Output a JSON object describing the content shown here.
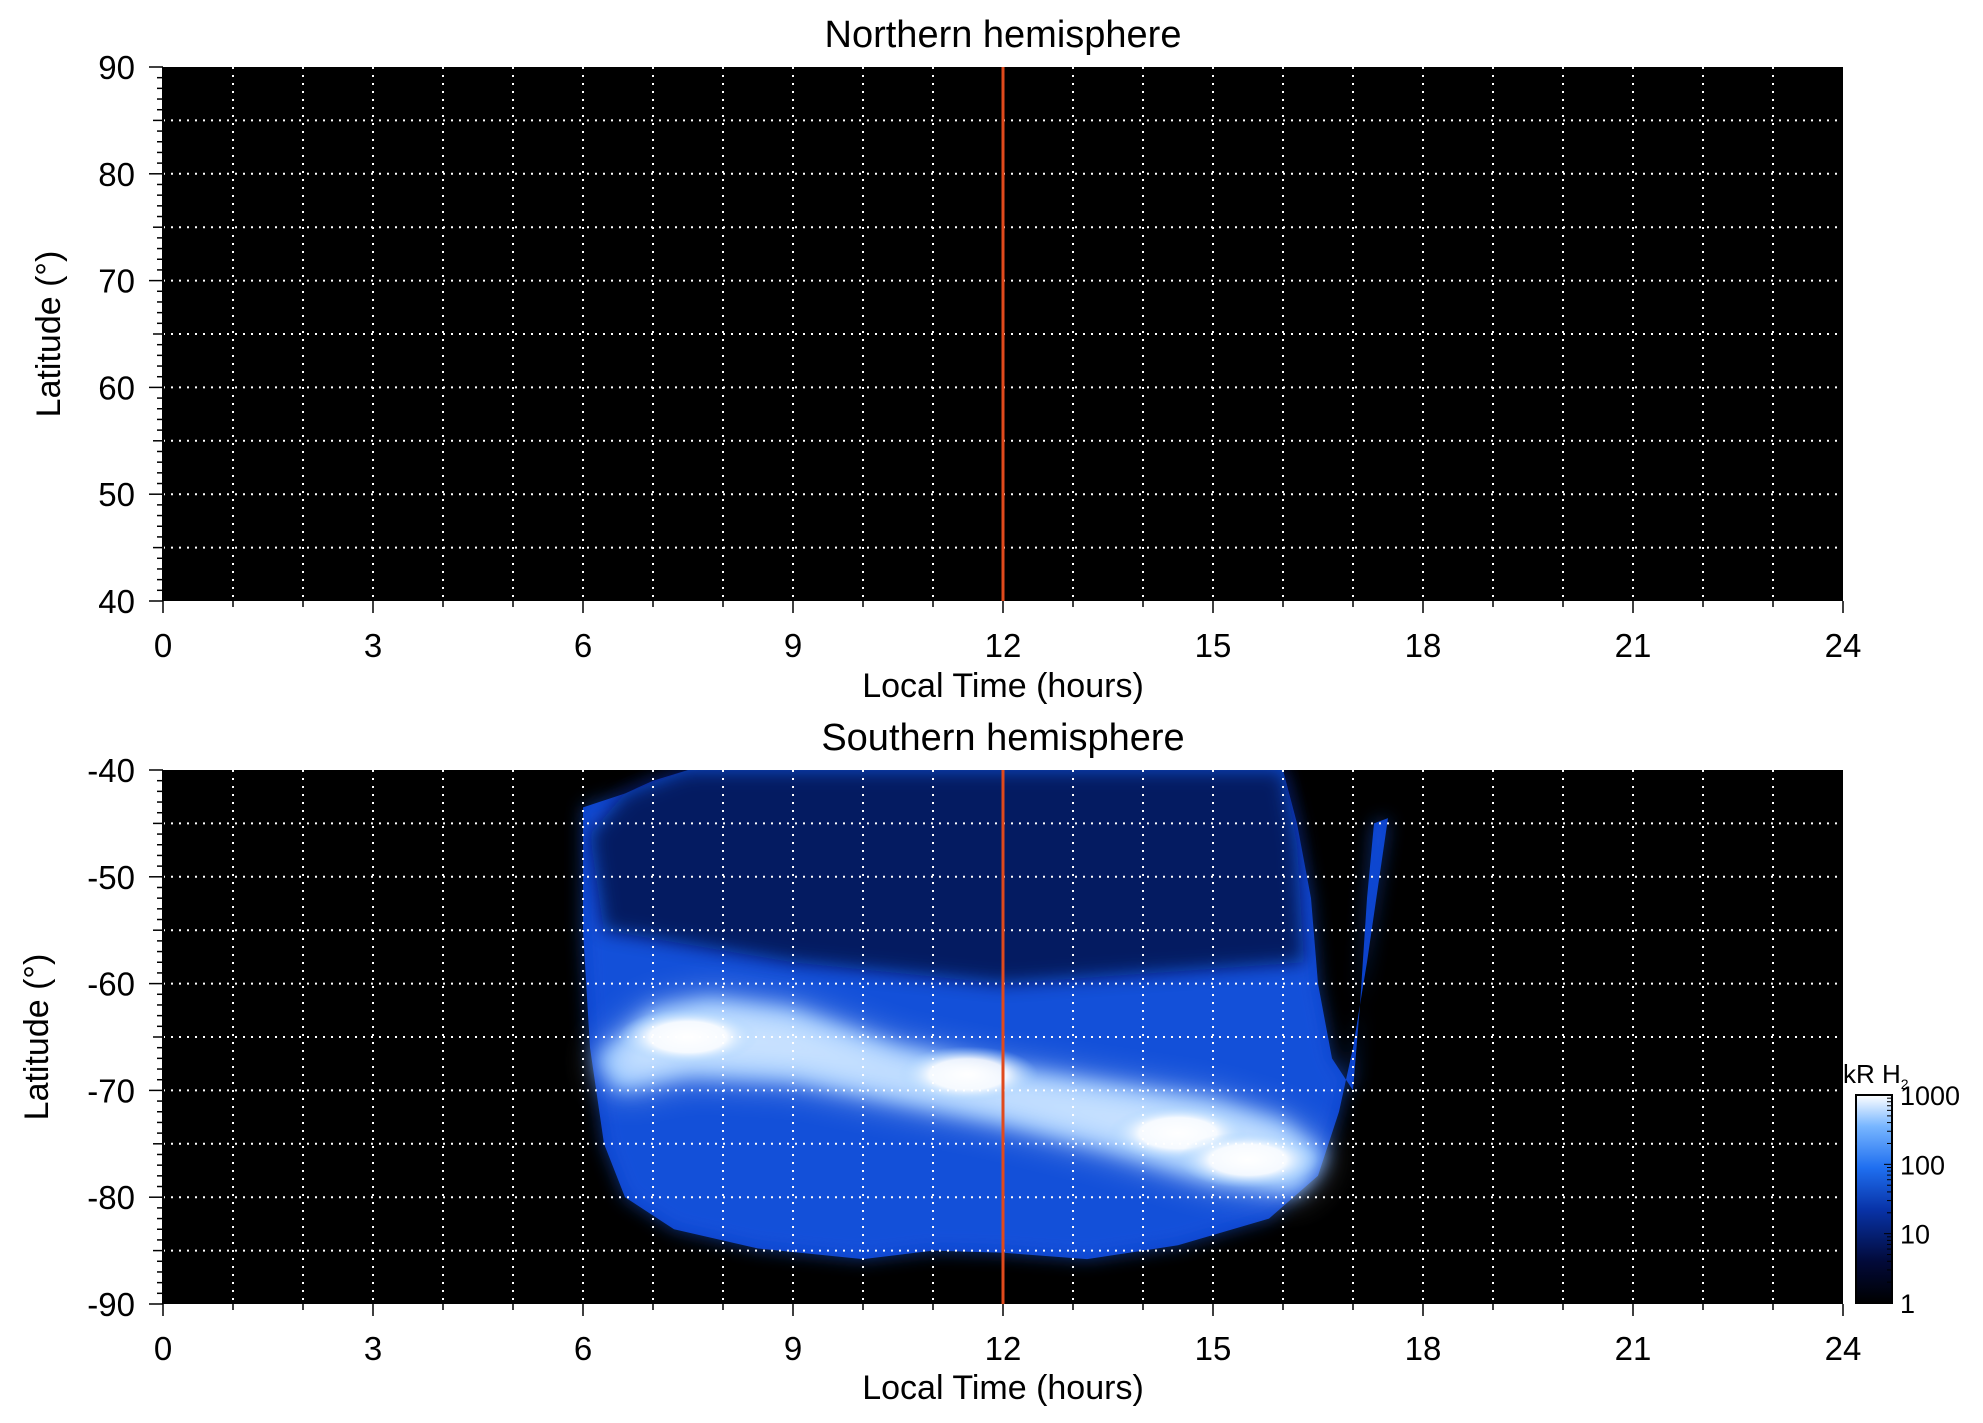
{
  "chart_data": [
    {
      "type": "heatmap",
      "title": "Northern hemisphere",
      "xlabel": "Local Time (hours)",
      "ylabel": "Latitude (°)",
      "xlim": [
        0,
        24
      ],
      "ylim": [
        40,
        90
      ],
      "xticks": [
        0,
        3,
        6,
        9,
        12,
        15,
        18,
        21,
        24
      ],
      "xtick_labels": [
        "0",
        "3",
        "6",
        "9",
        "12",
        "15",
        "18",
        "21",
        "24"
      ],
      "yticks": [
        40,
        50,
        60,
        70,
        80,
        90
      ],
      "ytick_labels": [
        "40",
        "50",
        "60",
        "70",
        "80",
        "90"
      ],
      "grid": true,
      "grid_x_step": 1,
      "grid_y_step": 5,
      "background_color": "#000000",
      "marker_line": {
        "x": 12,
        "color": "#e04a1c"
      },
      "emission_region": null
    },
    {
      "type": "heatmap",
      "title": "Southern hemisphere",
      "xlabel": "Local Time (hours)",
      "ylabel": "Latitude (°)",
      "xlim": [
        0,
        24
      ],
      "ylim": [
        -90,
        -40
      ],
      "xticks": [
        0,
        3,
        6,
        9,
        12,
        15,
        18,
        21,
        24
      ],
      "xtick_labels": [
        "0",
        "3",
        "6",
        "9",
        "12",
        "15",
        "18",
        "21",
        "24"
      ],
      "yticks": [
        -90,
        -80,
        -70,
        -60,
        -50,
        -40
      ],
      "ytick_labels": [
        "-90",
        "-80",
        "-70",
        "-60",
        "-50",
        "-40"
      ],
      "grid": true,
      "grid_x_step": 1,
      "grid_y_step": 5,
      "background_color": "#000000",
      "marker_line": {
        "x": 12,
        "color": "#e04a1c"
      },
      "emission_region": {
        "boundary": [
          [
            6.0,
            -43.5
          ],
          [
            6.6,
            -42.2
          ],
          [
            7.0,
            -41.0
          ],
          [
            7.5,
            -40.0
          ],
          [
            16.0,
            -40.0
          ],
          [
            16.2,
            -45.0
          ],
          [
            16.4,
            -52.0
          ],
          [
            16.5,
            -60.0
          ],
          [
            16.7,
            -67.0
          ],
          [
            17.0,
            -70.0
          ],
          [
            17.1,
            -62.0
          ],
          [
            17.2,
            -52.0
          ],
          [
            17.3,
            -45.0
          ],
          [
            17.5,
            -44.5
          ],
          [
            17.4,
            -49.0
          ],
          [
            17.2,
            -58.0
          ],
          [
            17.0,
            -66.0
          ],
          [
            16.8,
            -72.0
          ],
          [
            16.5,
            -78.0
          ],
          [
            15.8,
            -82.0
          ],
          [
            14.5,
            -84.5
          ],
          [
            13.2,
            -85.8
          ],
          [
            12.0,
            -85.2
          ],
          [
            11.0,
            -85.0
          ],
          [
            10.0,
            -85.8
          ],
          [
            8.5,
            -84.8
          ],
          [
            7.3,
            -83.0
          ],
          [
            6.6,
            -80.0
          ],
          [
            6.3,
            -75.0
          ],
          [
            6.1,
            -66.0
          ],
          [
            6.0,
            -55.0
          ],
          [
            6.0,
            -43.5
          ]
        ],
        "bright_oval": [
          [
            6.2,
            -67.0
          ],
          [
            7.0,
            -62.5
          ],
          [
            7.8,
            -61.5
          ],
          [
            9.0,
            -62.5
          ],
          [
            10.5,
            -66.0
          ],
          [
            12.0,
            -68.0
          ],
          [
            13.5,
            -69.5
          ],
          [
            15.0,
            -71.0
          ],
          [
            16.0,
            -73.0
          ],
          [
            16.6,
            -76.0
          ],
          [
            16.2,
            -79.5
          ],
          [
            15.0,
            -78.5
          ],
          [
            13.5,
            -75.5
          ],
          [
            12.0,
            -73.0
          ],
          [
            10.5,
            -71.0
          ],
          [
            9.0,
            -69.0
          ],
          [
            7.5,
            -68.5
          ],
          [
            6.5,
            -70.0
          ],
          [
            6.2,
            -67.0
          ]
        ],
        "bright_patches": [
          {
            "x": 7.5,
            "y": -65.0,
            "value": 1000
          },
          {
            "x": 11.5,
            "y": -68.5,
            "value": 1000
          },
          {
            "x": 14.5,
            "y": -74.0,
            "value": 1000
          },
          {
            "x": 15.5,
            "y": -76.5,
            "value": 1000
          }
        ]
      }
    }
  ],
  "colorbar": {
    "label": "kR H",
    "label_subscript": "2",
    "scale": "log",
    "range": [
      1,
      1000
    ],
    "tick_labels": [
      "1000",
      "100",
      "10",
      "1"
    ],
    "tick_values": [
      1000,
      100,
      10,
      1
    ],
    "colors": [
      "#000000",
      "#020a3a",
      "#0833a8",
      "#1f6ff0",
      "#78b6ff",
      "#ffffff"
    ]
  }
}
